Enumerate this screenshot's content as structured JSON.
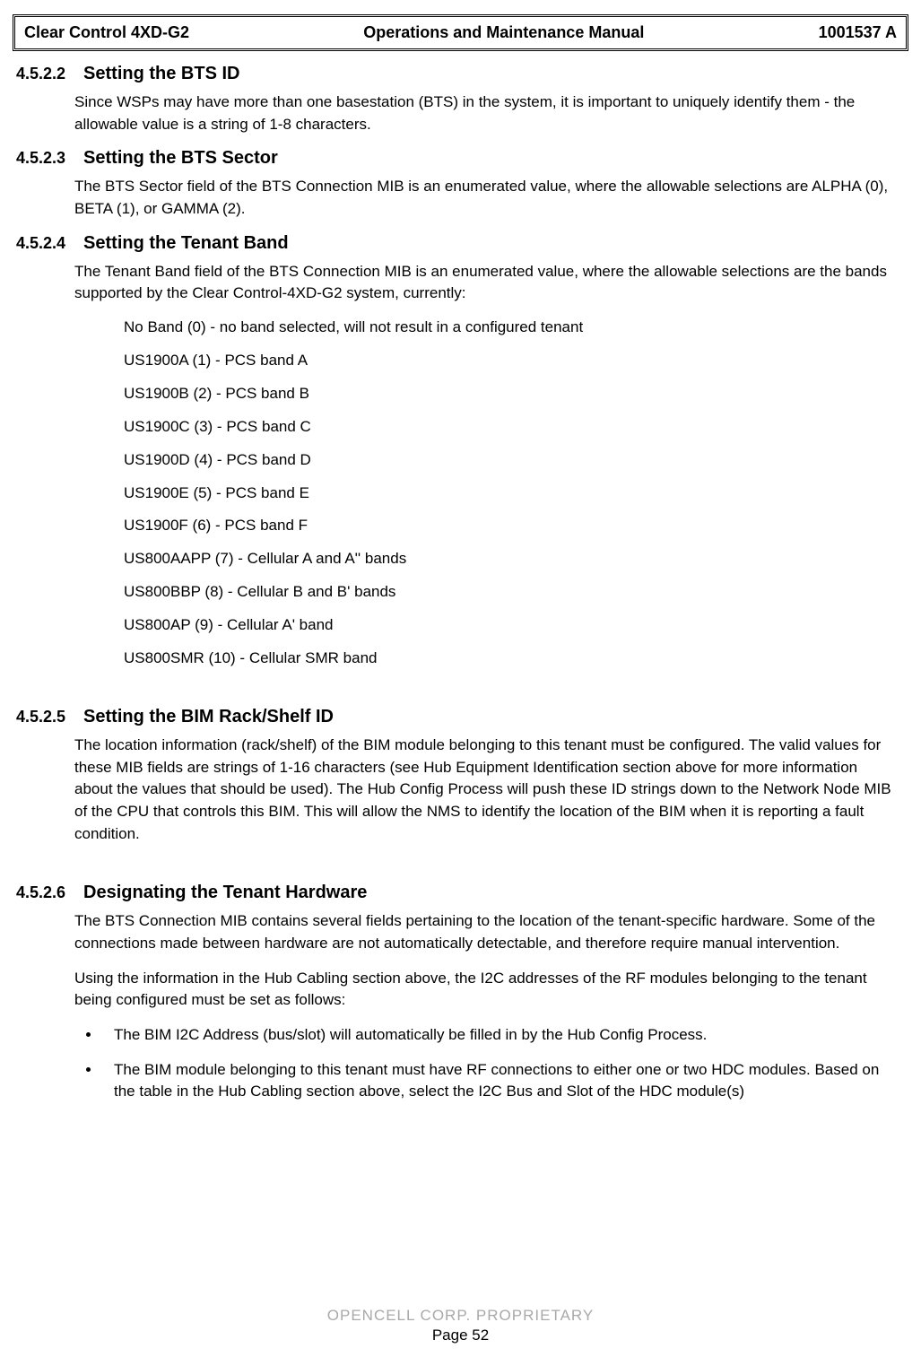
{
  "header": {
    "left": "Clear Control 4XD-G2",
    "center": "Operations and Maintenance Manual",
    "right": "1001537 A"
  },
  "sections": [
    {
      "num": "4.5.2.2",
      "title": "Setting the BTS ID",
      "paragraphs": [
        "Since WSPs may have more than one basestation (BTS) in the system, it is important to uniquely identify them - the allowable value is a string of 1-8 characters."
      ]
    },
    {
      "num": "4.5.2.3",
      "title": "Setting the BTS Sector",
      "paragraphs": [
        "The BTS Sector field of the BTS Connection MIB is an enumerated value, where the allowable selections are ALPHA (0), BETA (1), or GAMMA (2)."
      ]
    },
    {
      "num": "4.5.2.4",
      "title": "Setting the Tenant Band",
      "paragraphs": [
        "The Tenant Band field of the BTS Connection MIB is an enumerated value, where the allowable selections are the bands supported by the Clear Control-4XD-G2 system, currently:"
      ],
      "list": [
        "No Band (0) - no band selected, will not result in a configured tenant",
        "US1900A (1) - PCS band A",
        "US1900B (2) - PCS band B",
        "US1900C (3) - PCS band C",
        "US1900D (4) - PCS band D",
        "US1900E (5) - PCS band E",
        "US1900F (6) - PCS band F",
        "US800AAPP (7) - Cellular A and A'' bands",
        "US800BBP (8) - Cellular B and B' bands",
        "US800AP (9) - Cellular A' band",
        "US800SMR (10) - Cellular SMR band"
      ],
      "spacer_after": true
    },
    {
      "num": "4.5.2.5",
      "title": "Setting the BIM Rack/Shelf ID",
      "paragraphs": [
        "The location information (rack/shelf) of the BIM module belonging to this tenant must be configured. The valid values for these MIB fields are strings of 1-16 characters (see Hub Equipment Identification section above for more information about the values that should be used). The Hub Config Process will push these ID strings down to the Network Node MIB of the CPU that controls this BIM. This will allow the NMS to identify the location of the BIM when it is reporting a fault condition."
      ],
      "spacer_after": true
    },
    {
      "num": "4.5.2.6",
      "title": "Designating the Tenant Hardware",
      "paragraphs": [
        "The BTS Connection MIB contains several fields pertaining to the location of the tenant-specific hardware. Some of the connections made between hardware are not automatically detectable, and therefore require manual intervention.",
        "Using the information in the Hub Cabling section above, the I2C addresses of the RF modules belonging to the tenant being configured must be set as follows:"
      ],
      "bullets": [
        "The BIM I2C Address (bus/slot) will automatically be filled in by the Hub Config Process.",
        "The BIM module belonging to this tenant must have RF connections to either one or two HDC modules. Based on the table in the Hub Cabling section above, select the I2C Bus and Slot of the HDC module(s)"
      ]
    }
  ],
  "footer": {
    "proprietary": "OPENCELL CORP.  PROPRIETARY",
    "page": "Page 52"
  }
}
